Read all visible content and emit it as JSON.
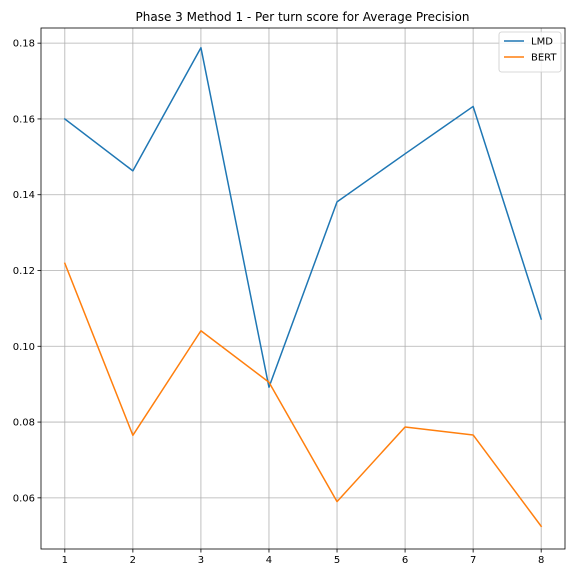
{
  "chart_data": {
    "type": "line",
    "title": "Phase 3 Method 1 - Per turn score for Average Precision",
    "xlabel": "",
    "ylabel": "",
    "x": [
      1,
      2,
      3,
      4,
      5,
      6,
      7,
      8
    ],
    "xticks": [
      "1",
      "2",
      "3",
      "4",
      "5",
      "6",
      "7",
      "8"
    ],
    "yticks": [
      "0.06",
      "0.08",
      "0.10",
      "0.12",
      "0.14",
      "0.16",
      "0.18"
    ],
    "xlim": [
      0.65,
      8.35
    ],
    "ylim": [
      0.0465,
      0.184
    ],
    "grid": true,
    "legend_position": "top-right",
    "series": [
      {
        "name": "LMD",
        "color": "#1f77b4",
        "values": [
          0.16,
          0.1463,
          0.1788,
          0.0892,
          0.1381,
          0.1508,
          0.1633,
          0.1072
        ]
      },
      {
        "name": "BERT",
        "color": "#ff7f0e",
        "values": [
          0.1219,
          0.0765,
          0.1041,
          0.0905,
          0.059,
          0.0787,
          0.0766,
          0.0525
        ]
      }
    ]
  }
}
